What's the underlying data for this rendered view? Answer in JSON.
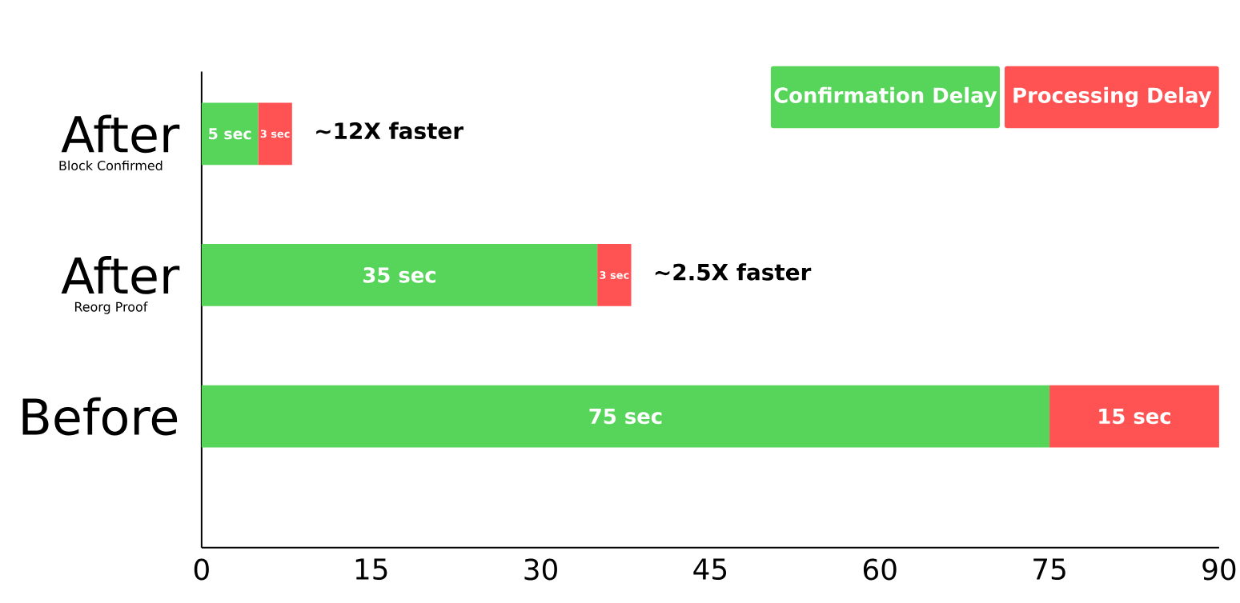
{
  "chart_data": {
    "type": "bar",
    "orientation": "horizontal",
    "stacked": true,
    "categories": [
      "After",
      "After",
      "Before"
    ],
    "series": [
      {
        "name": "Confirmation Delay",
        "color": "#57d55a",
        "values": [
          5,
          35,
          75
        ],
        "value_labels": [
          "5 sec",
          "35 sec",
          "75 sec"
        ]
      },
      {
        "name": "Processing Delay",
        "color": "#ff5252",
        "values": [
          3,
          3,
          15
        ],
        "value_labels": [
          "3 sec",
          "3 sec",
          "15 sec"
        ]
      }
    ],
    "xlim": [
      0,
      90
    ],
    "xticks": [
      0,
      15,
      30,
      45,
      60,
      75,
      90
    ],
    "legend": "top right",
    "grid": false,
    "annotations": [
      "Block Confirmed",
      "Reorg Proof",
      "~12X faster",
      "~2.5X faster"
    ]
  }
}
